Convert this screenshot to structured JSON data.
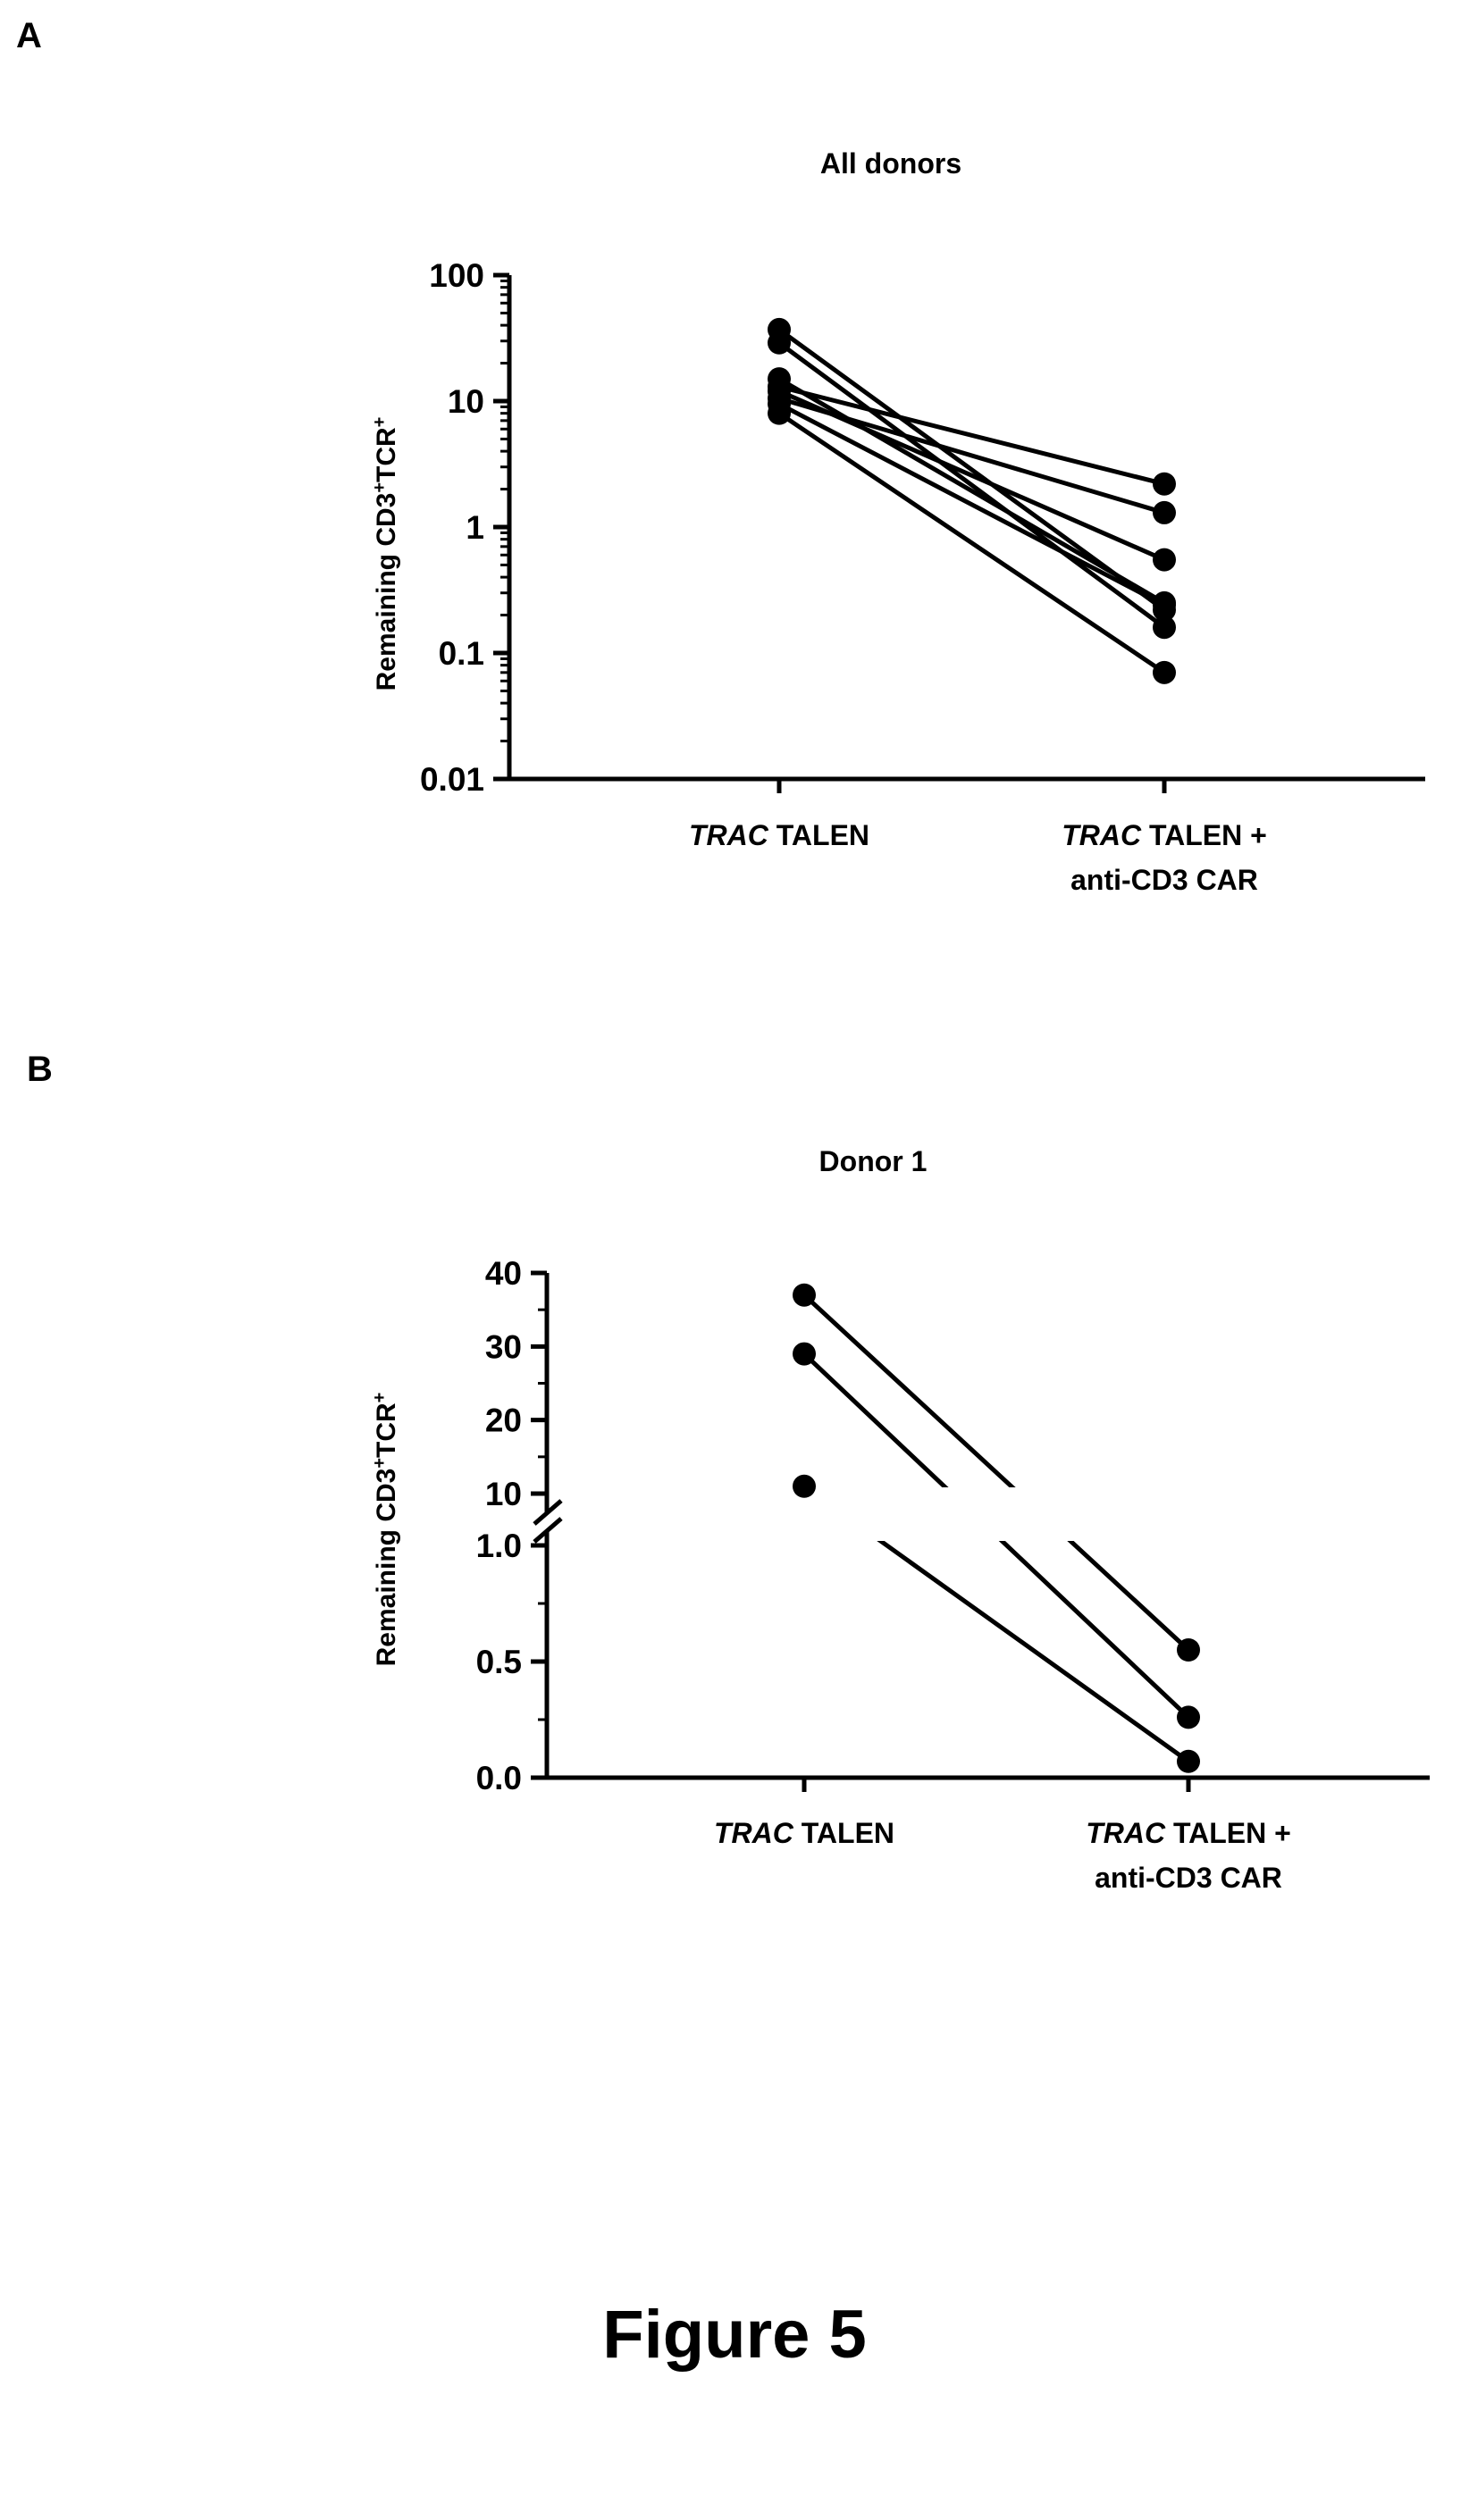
{
  "panel_letters": [
    "A",
    "B"
  ],
  "figure_caption": "Figure 5",
  "chart_data": [
    {
      "type": "line",
      "title": "All donors",
      "ylabel": "Remaining CD3+TCR+",
      "yscale": "log",
      "ylim": [
        0.01,
        100
      ],
      "yticks": [
        "0.01",
        "0.1",
        "1",
        "10",
        "100"
      ],
      "categories": [
        {
          "italic": "TRAC",
          "rest": " TALEN",
          "line2": ""
        },
        {
          "italic": "TRAC",
          "rest": " TALEN +",
          "line2": "anti-CD3 CAR"
        }
      ],
      "series": [
        {
          "values": [
            37,
            0.22
          ]
        },
        {
          "values": [
            29,
            0.16
          ]
        },
        {
          "values": [
            15,
            0.25
          ]
        },
        {
          "values": [
            13,
            2.2
          ]
        },
        {
          "values": [
            12,
            0.55
          ]
        },
        {
          "values": [
            10.5,
            1.3
          ]
        },
        {
          "values": [
            9.5,
            0.24
          ]
        },
        {
          "values": [
            8,
            0.07
          ]
        }
      ],
      "grid": false
    },
    {
      "type": "line",
      "title": "Donor 1",
      "ylabel": "Remaining CD3+TCR+",
      "yscale": "broken-linear",
      "ylim": [
        0,
        40
      ],
      "axis_break": [
        1.0,
        10
      ],
      "yticks_lower": [
        "0.0",
        "0.5",
        "1.0"
      ],
      "yticks_upper": [
        "10",
        "20",
        "30",
        "40"
      ],
      "categories": [
        {
          "italic": "TRAC",
          "rest": " TALEN",
          "line2": ""
        },
        {
          "italic": "TRAC",
          "rest": " TALEN +",
          "line2": "anti-CD3 CAR"
        }
      ],
      "series": [
        {
          "values": [
            37,
            0.55
          ]
        },
        {
          "values": [
            29,
            0.26
          ]
        },
        {
          "values": [
            11,
            0.07
          ]
        }
      ],
      "grid": false
    }
  ]
}
